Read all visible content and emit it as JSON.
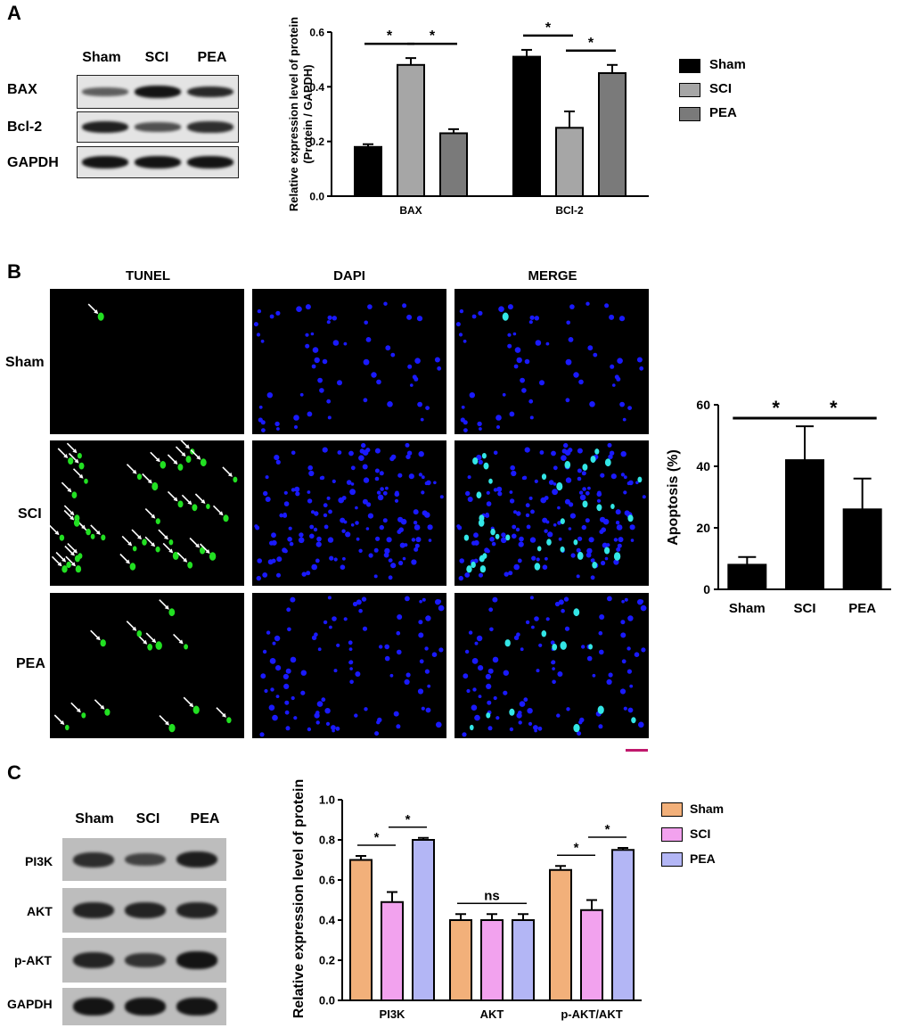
{
  "panels": {
    "A": {
      "label": "A",
      "blot": {
        "lanes": [
          "Sham",
          "SCI",
          "PEA"
        ],
        "rows": [
          "BAX",
          "Bcl-2",
          "GAPDH"
        ],
        "band_intensity": [
          [
            0.45,
            1.0,
            0.85
          ],
          [
            0.9,
            0.55,
            0.8
          ],
          [
            1.0,
            1.0,
            1.0
          ]
        ]
      }
    },
    "B": {
      "label": "B",
      "columns": [
        "TUNEL",
        "DAPI",
        "MERGE"
      ],
      "rows": [
        "Sham",
        "SCI",
        "PEA"
      ]
    },
    "C": {
      "label": "C",
      "blot": {
        "lanes": [
          "Sham",
          "SCI",
          "PEA"
        ],
        "rows": [
          "PI3K",
          "AKT",
          "p-AKT",
          "GAPDH"
        ],
        "band_intensity": [
          [
            0.75,
            0.55,
            0.9
          ],
          [
            0.85,
            0.85,
            0.85
          ],
          [
            0.85,
            0.7,
            1.0
          ],
          [
            1.0,
            1.0,
            1.0
          ]
        ]
      }
    }
  },
  "chart_data": [
    {
      "id": "A",
      "type": "bar",
      "categories": [
        "BAX",
        "BCl-2"
      ],
      "series": [
        {
          "name": "Sham",
          "values": [
            0.18,
            0.51
          ],
          "errors": [
            0.01,
            0.025
          ],
          "color": "#000000"
        },
        {
          "name": "SCI",
          "values": [
            0.48,
            0.25
          ],
          "errors": [
            0.025,
            0.06
          ],
          "color": "#a6a6a6"
        },
        {
          "name": "PEA",
          "values": [
            0.23,
            0.45
          ],
          "errors": [
            0.015,
            0.03
          ],
          "color": "#7a7a7a"
        }
      ],
      "ylabel_lines": [
        "Relative expression level of protein",
        "(Protein / GAPDH)"
      ],
      "ylim": [
        0,
        0.6
      ],
      "yticks": [
        "0.0",
        "0.2",
        "0.4",
        "0.6"
      ],
      "legend_position": "right",
      "significance": [
        {
          "group": 0,
          "from": 0,
          "to": 1,
          "label": "*"
        },
        {
          "group": 0,
          "from": 1,
          "to": 2,
          "label": "*"
        },
        {
          "group": 1,
          "from": 0,
          "to": 1,
          "label": "*"
        },
        {
          "group": 1,
          "from": 1,
          "to": 2,
          "label": "*"
        }
      ]
    },
    {
      "id": "B",
      "type": "bar",
      "categories": [
        "Sham",
        "SCI",
        "PEA"
      ],
      "values": [
        8,
        42,
        26
      ],
      "errors": [
        2.5,
        11,
        10
      ],
      "color": "#000000",
      "ylabel": "Apoptosis (%)",
      "ylim": [
        0,
        60
      ],
      "yticks": [
        "0",
        "20",
        "40",
        "60"
      ],
      "significance": [
        {
          "from": 0,
          "to": 1,
          "label": "*"
        },
        {
          "from": 1,
          "to": 2,
          "label": "*"
        }
      ]
    },
    {
      "id": "C",
      "type": "bar",
      "categories": [
        "PI3K",
        "AKT",
        "p-AKT/AKT"
      ],
      "series": [
        {
          "name": "Sham",
          "values": [
            0.7,
            0.4,
            0.65
          ],
          "errors": [
            0.02,
            0.03,
            0.02
          ],
          "color": "#f2b07a"
        },
        {
          "name": "SCI",
          "values": [
            0.49,
            0.4,
            0.45
          ],
          "errors": [
            0.05,
            0.03,
            0.05
          ],
          "color": "#f2a2ee"
        },
        {
          "name": "PEA",
          "values": [
            0.8,
            0.4,
            0.75
          ],
          "errors": [
            0.01,
            0.03,
            0.01
          ],
          "color": "#b3b6f5"
        }
      ],
      "ylabel": "Relative expression level of protein",
      "ylim": [
        0,
        1.0
      ],
      "yticks": [
        "0.0",
        "0.2",
        "0.4",
        "0.6",
        "0.8",
        "1.0"
      ],
      "legend_position": "right",
      "significance": [
        {
          "group": 0,
          "from": 0,
          "to": 1,
          "label": "*"
        },
        {
          "group": 0,
          "from": 1,
          "to": 2,
          "label": "*"
        },
        {
          "group": 1,
          "from": 0,
          "to": 2,
          "label": "ns"
        },
        {
          "group": 2,
          "from": 0,
          "to": 1,
          "label": "*"
        },
        {
          "group": 2,
          "from": 1,
          "to": 2,
          "label": "*"
        }
      ]
    }
  ]
}
